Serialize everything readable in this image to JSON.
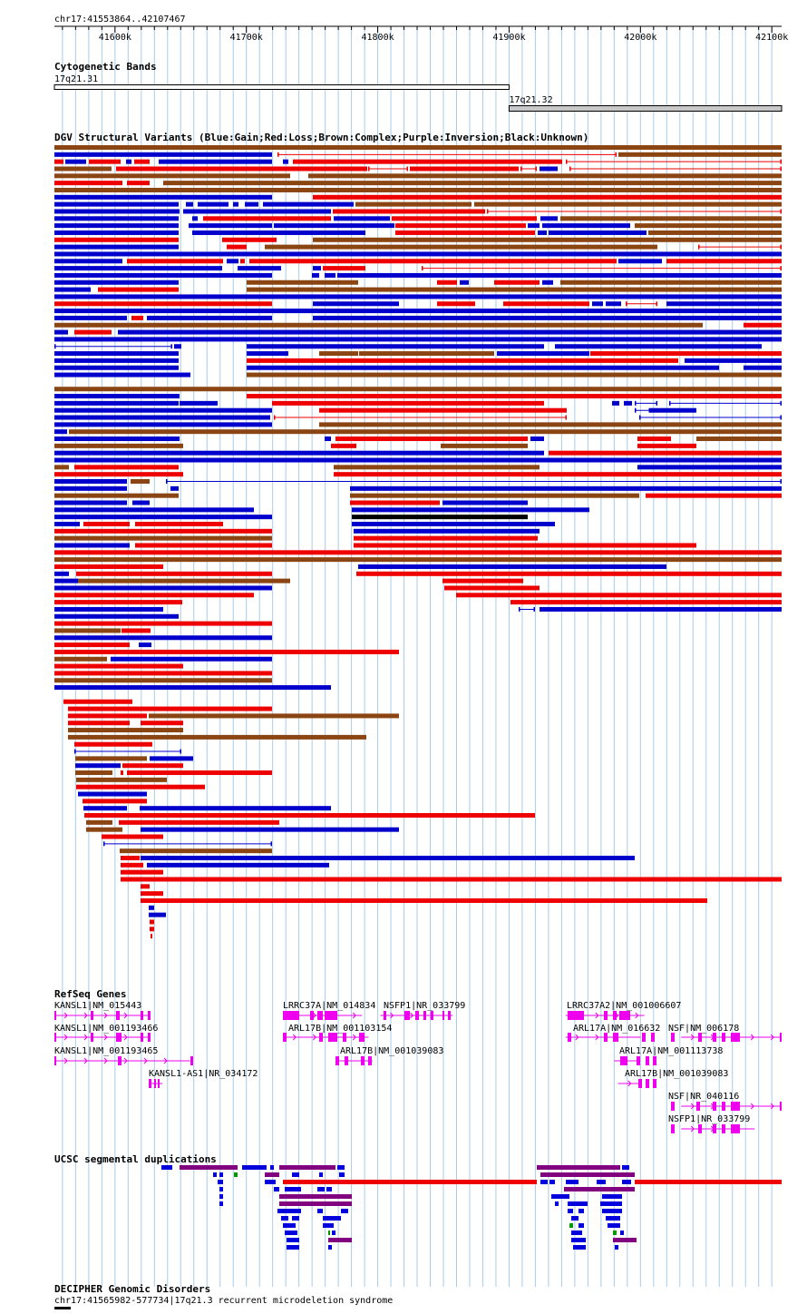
{
  "position": "chr17:41553864..42107467",
  "ruler": {
    "start": 41553864,
    "end": 42107467,
    "ticks": [
      {
        "pos": 41600000,
        "label": "41600k"
      },
      {
        "pos": 41700000,
        "label": "41700k"
      },
      {
        "pos": 41800000,
        "label": "41800k"
      },
      {
        "pos": 41900000,
        "label": "41900k"
      },
      {
        "pos": 42000000,
        "label": "42000k"
      },
      {
        "pos": 42100000,
        "label": "42100k"
      }
    ]
  },
  "tracks": {
    "cytobands": {
      "title": "Cytogenetic Bands",
      "bands": [
        {
          "name": "17q21.31",
          "start": 41553864,
          "end": 41900000,
          "stain": "white"
        },
        {
          "name": "17q21.32",
          "start": 41900000,
          "end": 42107467,
          "stain": "gray"
        }
      ]
    },
    "dgv": {
      "title": "DGV Structural Variants (Blue:Gain;Red:Loss;Brown:Complex;Purple:Inversion;Black:Unknown)",
      "colors": {
        "B": "#0000cc",
        "R": "#ee0000",
        "N": "#8b4513",
        "P": "#800080",
        "K": "#000000"
      }
    },
    "refseq": {
      "title": "RefSeq Genes",
      "color": "#ee00ee",
      "genes": [
        {
          "label": "KANSL1|NM_015443",
          "start": 41553864,
          "end": 41627000
        },
        {
          "label": "KANSL1|NM_001193466",
          "start": 41553864,
          "end": 41627000
        },
        {
          "label": "KANSL1|NM_001193465",
          "start": 41553864,
          "end": 41657000
        },
        {
          "label": "KANSL1-AS1|NR_034172",
          "start": 41626000,
          "end": 41636000
        },
        {
          "label": "LRRC37A|NM_014834",
          "start": 41728000,
          "end": 41788000
        },
        {
          "label": "NSFP1|NR_033799",
          "start": 41802000,
          "end": 41857000
        },
        {
          "label": "ARL17B|NM_001103154",
          "start": 41728000,
          "end": 41793000
        },
        {
          "label": "ARL17B|NM_001039083",
          "start": 41768000,
          "end": 41796000
        },
        {
          "label": "LRRC37A2|NM_001006607",
          "start": 41943000,
          "end": 42003000
        },
        {
          "label": "ARL17A|NM_016632",
          "start": 41943000,
          "end": 42000000
        },
        {
          "label": "NSF|NM_006178",
          "start": 42031000,
          "end": 42107467
        },
        {
          "label": "ARL17A|NM_001113738",
          "start": 41980000,
          "end": 42000000
        },
        {
          "label": "ARL17B|NM_001039083",
          "start": 41983000,
          "end": 42000000
        },
        {
          "label": "NSF|NR_040116",
          "start": 42031000,
          "end": 42107467
        },
        {
          "label": "NSFP1|NR_033799",
          "start": 42031000,
          "end": 42087000
        }
      ]
    },
    "segdups": {
      "title": "UCSC segmental duplications"
    },
    "decipher": {
      "title": "DECIPHER Genomic Disorders",
      "item": "chr17:41565982-577734|17q21.3 recurrent microdeletion syndrome"
    }
  }
}
